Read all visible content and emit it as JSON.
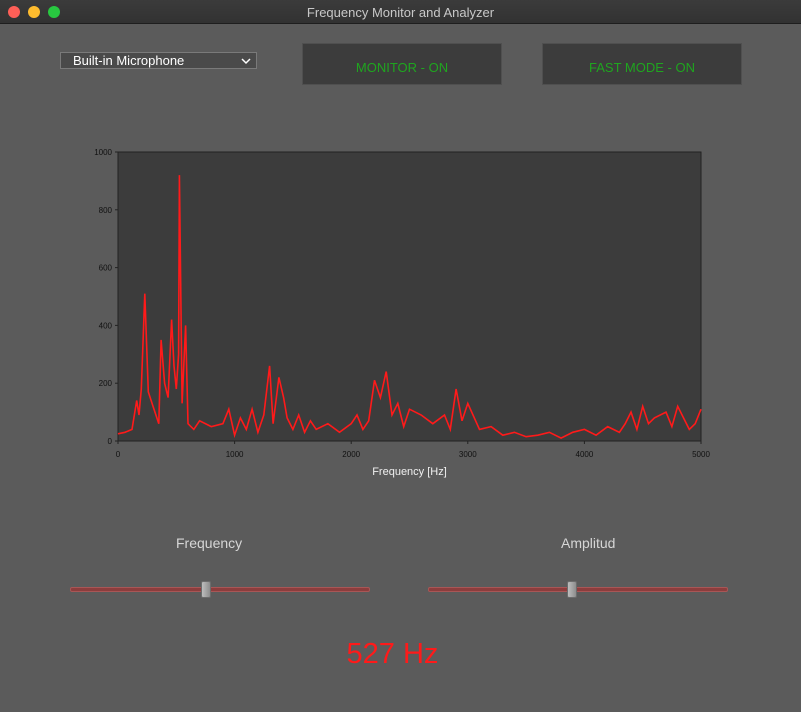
{
  "window": {
    "title": "Frequency Monitor and Analyzer"
  },
  "controls": {
    "device": "Built-in Microphone",
    "monitor_label": "MONITOR - ON",
    "fast_mode_label": "FAST MODE - ON"
  },
  "chart_data": {
    "type": "line",
    "xlabel": "Frequency [Hz]",
    "ylabel": "",
    "xlim": [
      0,
      5000
    ],
    "ylim": [
      0,
      1000
    ],
    "xticks": [
      0,
      1000,
      2000,
      3000,
      4000,
      5000
    ],
    "yticks": [
      0,
      200,
      400,
      600,
      800,
      1000
    ],
    "grid": false,
    "line_color": "#ff1a1a",
    "background": "#3c3c3c",
    "series": [
      {
        "x": [
          0,
          60,
          120,
          160,
          180,
          200,
          230,
          260,
          300,
          350,
          370,
          400,
          430,
          460,
          480,
          500,
          520,
          527,
          550,
          580,
          600,
          650,
          700,
          800,
          900,
          950,
          1000,
          1050,
          1100,
          1150,
          1200,
          1250,
          1300,
          1330,
          1380,
          1420,
          1450,
          1500,
          1550,
          1600,
          1650,
          1700,
          1800,
          1900,
          2000,
          2050,
          2100,
          2150,
          2200,
          2250,
          2300,
          2350,
          2400,
          2450,
          2500,
          2600,
          2700,
          2800,
          2850,
          2900,
          2950,
          3000,
          3100,
          3200,
          3300,
          3400,
          3500,
          3600,
          3700,
          3800,
          3900,
          4000,
          4100,
          4200,
          4300,
          4350,
          4400,
          4450,
          4500,
          4550,
          4600,
          4700,
          4750,
          4800,
          4900,
          4950,
          5000
        ],
        "y": [
          25,
          30,
          40,
          140,
          90,
          180,
          510,
          170,
          120,
          60,
          350,
          200,
          150,
          420,
          260,
          180,
          300,
          920,
          130,
          400,
          60,
          40,
          70,
          50,
          60,
          110,
          20,
          80,
          40,
          110,
          30,
          90,
          260,
          60,
          220,
          150,
          80,
          40,
          90,
          30,
          70,
          40,
          60,
          30,
          60,
          90,
          40,
          70,
          210,
          150,
          240,
          90,
          130,
          50,
          110,
          90,
          60,
          90,
          40,
          180,
          70,
          130,
          40,
          50,
          20,
          30,
          15,
          20,
          30,
          10,
          30,
          40,
          20,
          50,
          30,
          60,
          100,
          40,
          120,
          60,
          80,
          100,
          50,
          120,
          40,
          60,
          110
        ]
      }
    ]
  },
  "sliders": {
    "frequency": {
      "label": "Frequency",
      "value": 0.45
    },
    "amplitude": {
      "label": "Amplitud",
      "value": 0.48
    }
  },
  "readout": "527 Hz"
}
